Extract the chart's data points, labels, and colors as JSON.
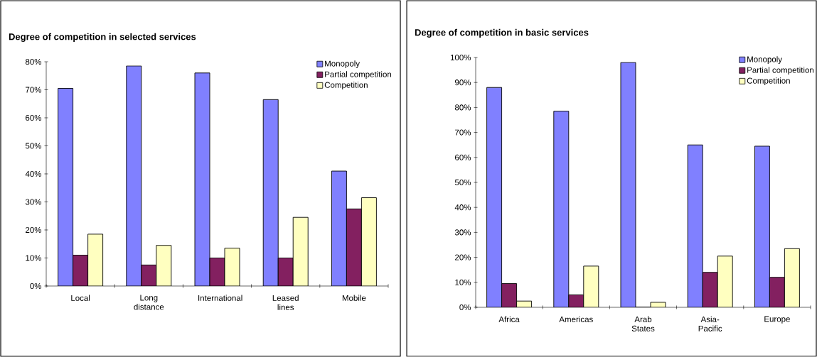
{
  "chart_data": [
    {
      "type": "bar",
      "title": "Degree of competition in selected services",
      "categories": [
        "Local",
        "Long distance",
        "International",
        "Leased lines",
        "Mobile"
      ],
      "series": [
        {
          "name": "Monopoly",
          "color": "#8080ff",
          "values": [
            70.5,
            78.5,
            76,
            66.5,
            41
          ]
        },
        {
          "name": "Partial competition",
          "color": "#832060",
          "values": [
            11,
            7.5,
            10,
            10,
            27.5
          ]
        },
        {
          "name": "Competition",
          "color": "#ffffc0",
          "values": [
            18.5,
            14.5,
            13.5,
            24.5,
            31.5
          ]
        }
      ],
      "ylim": [
        0,
        80
      ],
      "yticks": [
        {
          "value": 0,
          "label": "0%"
        },
        {
          "value": 10,
          "label": "10%"
        },
        {
          "value": 20,
          "label": "20%"
        },
        {
          "value": 30,
          "label": "30%"
        },
        {
          "value": 40,
          "label": "40%"
        },
        {
          "value": 50,
          "label": "50%"
        },
        {
          "value": 60,
          "label": "60%"
        },
        {
          "value": 70,
          "label": "70%"
        },
        {
          "value": 80,
          "label": "80%"
        }
      ],
      "grid": false,
      "legend": "top right"
    },
    {
      "type": "bar",
      "title": "Degree of competition in basic services",
      "categories": [
        "Africa",
        "Americas",
        "Arab States",
        "Asia-Pacific",
        "Europe"
      ],
      "series": [
        {
          "name": "Monopoly",
          "color": "#8080ff",
          "values": [
            88,
            78.5,
            98,
            65,
            64.5
          ]
        },
        {
          "name": "Partial competition",
          "color": "#832060",
          "values": [
            9.5,
            5,
            0,
            14,
            12
          ]
        },
        {
          "name": "Competition",
          "color": "#ffffc0",
          "values": [
            2.5,
            16.5,
            2,
            20.5,
            23.5
          ]
        }
      ],
      "ylim": [
        0,
        100
      ],
      "yticks": [
        {
          "value": 0,
          "label": "0%"
        },
        {
          "value": 10,
          "label": "10%"
        },
        {
          "value": 20,
          "label": "20%"
        },
        {
          "value": 30,
          "label": "30%"
        },
        {
          "value": 40,
          "label": "40%"
        },
        {
          "value": 50,
          "label": "50%"
        },
        {
          "value": 60,
          "label": "60%"
        },
        {
          "value": 70,
          "label": "70%"
        },
        {
          "value": 80,
          "label": "80%"
        },
        {
          "value": 90,
          "label": "90%"
        },
        {
          "value": 100,
          "label": "100%"
        }
      ],
      "grid": false,
      "legend": "top right"
    }
  ]
}
